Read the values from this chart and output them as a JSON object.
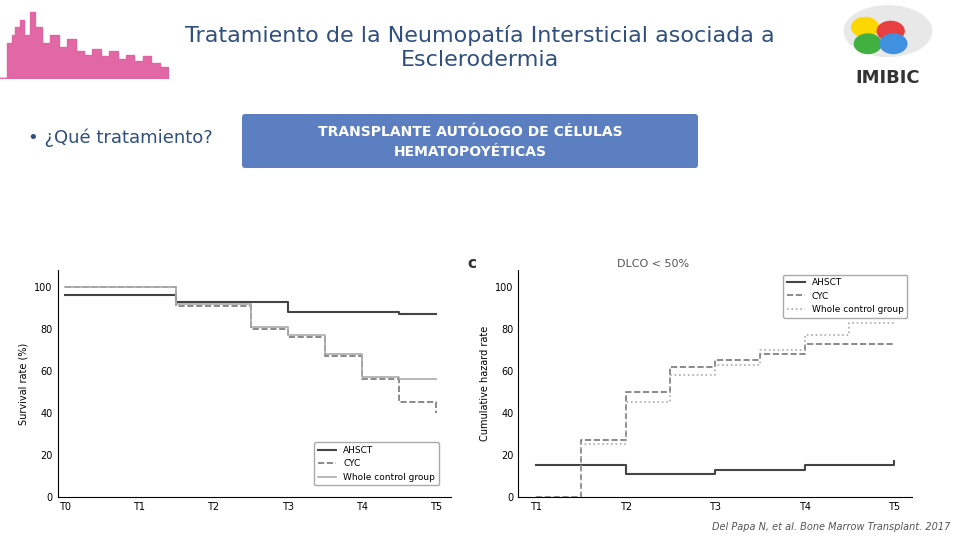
{
  "title_line1": "Tratamiento de la Neumopatía Intersticial asociada a",
  "title_line2": "Esclerodermia",
  "title_fontsize": 16,
  "title_color": "#2F4F7F",
  "bg_color": "#FFFFFF",
  "header_bg_color": "#7090B0",
  "bullet_text": "• ¿Qué tratamiento?",
  "bullet_fontsize": 13,
  "banner_text_line1": "TRANSPLANTE AUTÓLOGO DE CÉLULAS",
  "banner_text_line2": "HEMATOPOYÉTICAS",
  "banner_color": "#5B7FC0",
  "banner_text_color": "#FFFFFF",
  "banner_fontsize": 10,
  "imibic_text": "IMIBIC",
  "citation": "Del Papa N, et al. Bone Marrow Transplant. 2017",
  "citation_fontsize": 7,
  "left_ylabel": "Survival rate (%)",
  "left_xlabel_ticks": [
    "T0",
    "T1",
    "T2",
    "T3",
    "T4",
    "T5"
  ],
  "left_yticks": [
    0,
    20,
    40,
    60,
    80,
    100
  ],
  "left_AHSCT_x": [
    0,
    1.5,
    1.5,
    3.0,
    3.0,
    4.5,
    4.5,
    5
  ],
  "left_AHSCT_y": [
    96,
    96,
    93,
    93,
    88,
    88,
    87,
    87
  ],
  "left_CYC_x": [
    0,
    1.5,
    1.5,
    2.5,
    2.5,
    3.0,
    3.0,
    3.5,
    3.5,
    4.0,
    4.0,
    4.5,
    4.5,
    5.0
  ],
  "left_CYC_y": [
    100,
    100,
    91,
    91,
    80,
    80,
    76,
    76,
    67,
    67,
    56,
    56,
    45,
    40
  ],
  "left_WCG_x": [
    0,
    1.5,
    1.5,
    2.5,
    2.5,
    3.0,
    3.0,
    3.5,
    3.5,
    4.0,
    4.0,
    4.5,
    4.5,
    5.0
  ],
  "left_WCG_y": [
    100,
    100,
    92,
    92,
    81,
    81,
    77,
    77,
    68,
    68,
    57,
    57,
    56,
    56
  ],
  "right_label": "c",
  "right_subtitle": "DLCO < 50%",
  "right_ylabel": "Cumulative hazard rate",
  "right_xlabel_ticks": [
    "T1",
    "T2",
    "T3",
    "T4",
    "T5"
  ],
  "right_yticks": [
    0,
    20,
    40,
    60,
    80,
    100
  ],
  "right_AHSCT_x": [
    1,
    2,
    2,
    3,
    3,
    4,
    4,
    5
  ],
  "right_AHSCT_y": [
    15,
    15,
    11,
    11,
    13,
    13,
    15,
    17
  ],
  "right_CYC_x": [
    1,
    1.5,
    1.5,
    2.0,
    2.0,
    2.5,
    2.5,
    3.0,
    3.0,
    3.5,
    3.5,
    4.0,
    4.0,
    5.0
  ],
  "right_CYC_y": [
    0,
    0,
    27,
    27,
    50,
    50,
    62,
    62,
    65,
    65,
    68,
    68,
    73,
    73
  ],
  "right_WCG_x": [
    1,
    1.5,
    1.5,
    2.0,
    2.0,
    2.5,
    2.5,
    3.0,
    3.0,
    3.5,
    3.5,
    4.0,
    4.0,
    4.5,
    4.5,
    5.0
  ],
  "right_WCG_y": [
    0,
    0,
    25,
    25,
    45,
    45,
    58,
    58,
    63,
    63,
    70,
    70,
    77,
    77,
    83,
    83
  ],
  "AHSCT_color": "#444444",
  "CYC_color": "#777777",
  "WCG_color": "#aaaaaa"
}
